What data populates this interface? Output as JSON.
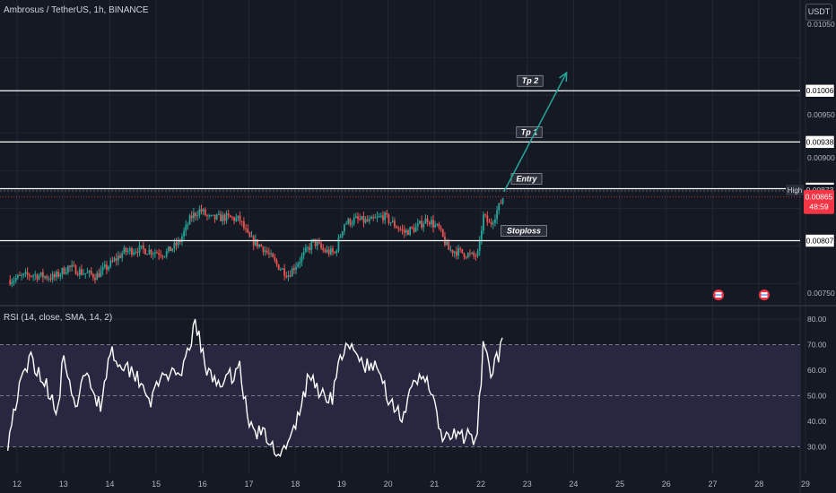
{
  "header": {
    "title": "Ambrosus / TetherUS, 1h, BINANCE",
    "currency": "USDT"
  },
  "colors": {
    "bg": "#151924",
    "grid": "#232733",
    "up": "#26a69a",
    "down": "#ef5350",
    "level_line": "#ffffff",
    "arrow": "#26a69a",
    "rsi_band": "#2a2944",
    "price_tag": "#f23645"
  },
  "chart_data": [
    {
      "type": "candlestick",
      "title": "Ambrosus / TetherUS, 1h, BINANCE",
      "x_ticks": [
        "12",
        "13",
        "14",
        "15",
        "16",
        "17",
        "18",
        "19",
        "20",
        "21",
        "22",
        "23",
        "24",
        "25",
        "26",
        "27",
        "28",
        "29"
      ],
      "y_ticks": [
        "0.01050",
        "0.00950",
        "0.00900",
        "0.00750"
      ],
      "ylim": [
        0.0074,
        0.0106
      ],
      "anchors": [
        {
          "day": 11.85,
          "price": 0.00755
        },
        {
          "day": 12.3,
          "price": 0.00762
        },
        {
          "day": 12.8,
          "price": 0.00758
        },
        {
          "day": 13.1,
          "price": 0.00772
        },
        {
          "day": 13.4,
          "price": 0.00765
        },
        {
          "day": 13.7,
          "price": 0.0076
        },
        {
          "day": 14.0,
          "price": 0.00775
        },
        {
          "day": 14.3,
          "price": 0.00792
        },
        {
          "day": 14.6,
          "price": 0.00796
        },
        {
          "day": 14.9,
          "price": 0.00793
        },
        {
          "day": 15.2,
          "price": 0.0079
        },
        {
          "day": 15.5,
          "price": 0.00805
        },
        {
          "day": 15.75,
          "price": 0.00838
        },
        {
          "day": 15.95,
          "price": 0.00848
        },
        {
          "day": 16.15,
          "price": 0.00836
        },
        {
          "day": 16.5,
          "price": 0.00838
        },
        {
          "day": 16.8,
          "price": 0.00835
        },
        {
          "day": 17.0,
          "price": 0.0081
        },
        {
          "day": 17.3,
          "price": 0.00798
        },
        {
          "day": 17.6,
          "price": 0.00775
        },
        {
          "day": 17.85,
          "price": 0.00762
        },
        {
          "day": 18.1,
          "price": 0.00782
        },
        {
          "day": 18.4,
          "price": 0.00806
        },
        {
          "day": 18.6,
          "price": 0.00794
        },
        {
          "day": 18.85,
          "price": 0.0079
        },
        {
          "day": 19.05,
          "price": 0.0083
        },
        {
          "day": 19.3,
          "price": 0.00835
        },
        {
          "day": 19.6,
          "price": 0.00832
        },
        {
          "day": 19.9,
          "price": 0.0084
        },
        {
          "day": 20.1,
          "price": 0.0083
        },
        {
          "day": 20.35,
          "price": 0.00818
        },
        {
          "day": 20.6,
          "price": 0.00824
        },
        {
          "day": 20.85,
          "price": 0.00836
        },
        {
          "day": 21.1,
          "price": 0.00822
        },
        {
          "day": 21.3,
          "price": 0.00795
        },
        {
          "day": 21.55,
          "price": 0.00792
        },
        {
          "day": 21.85,
          "price": 0.00786
        },
        {
          "day": 21.95,
          "price": 0.0079
        },
        {
          "day": 22.05,
          "price": 0.0084
        },
        {
          "day": 22.2,
          "price": 0.00828
        },
        {
          "day": 22.38,
          "price": 0.0085
        },
        {
          "day": 22.48,
          "price": 0.00865
        }
      ],
      "levels": [
        {
          "name": "Tp 2",
          "price": 0.01006,
          "label": "0.01006"
        },
        {
          "name": "Tp 1",
          "price": 0.00938,
          "label": "0.00938"
        },
        {
          "name": "Entry",
          "price": 0.00876,
          "label": "0.00876"
        },
        {
          "name": "Stoploss",
          "price": 0.00807,
          "label": "0.00807"
        }
      ],
      "high": {
        "label": "High",
        "value": "0.00873",
        "price": 0.00873
      },
      "current": {
        "value": "0.00865",
        "countdown": "48:59",
        "price": 0.00865
      },
      "arrow": {
        "from": {
          "day": 22.5,
          "price": 0.00872
        },
        "to": {
          "day": 23.85,
          "price": 0.0103
        }
      }
    },
    {
      "type": "line",
      "title": "RSI (14, close, SMA, 14, 2)",
      "y_ticks": [
        "80.00",
        "70.00",
        "60.00",
        "50.00",
        "40.00",
        "30.00"
      ],
      "ylim": [
        27,
        82
      ],
      "bands": [
        70,
        50,
        30
      ],
      "anchors": [
        {
          "day": 11.8,
          "value": 32
        },
        {
          "day": 12.0,
          "value": 50
        },
        {
          "day": 12.3,
          "value": 65
        },
        {
          "day": 12.6,
          "value": 55
        },
        {
          "day": 12.9,
          "value": 44
        },
        {
          "day": 13.0,
          "value": 68
        },
        {
          "day": 13.2,
          "value": 45
        },
        {
          "day": 13.5,
          "value": 58
        },
        {
          "day": 13.8,
          "value": 46
        },
        {
          "day": 14.0,
          "value": 68
        },
        {
          "day": 14.3,
          "value": 62
        },
        {
          "day": 14.6,
          "value": 58
        },
        {
          "day": 14.9,
          "value": 48
        },
        {
          "day": 15.2,
          "value": 60
        },
        {
          "day": 15.5,
          "value": 55
        },
        {
          "day": 15.75,
          "value": 72
        },
        {
          "day": 15.85,
          "value": 79
        },
        {
          "day": 16.1,
          "value": 58
        },
        {
          "day": 16.5,
          "value": 55
        },
        {
          "day": 16.8,
          "value": 62
        },
        {
          "day": 17.0,
          "value": 38
        },
        {
          "day": 17.3,
          "value": 35
        },
        {
          "day": 17.5,
          "value": 30
        },
        {
          "day": 17.8,
          "value": 28
        },
        {
          "day": 18.0,
          "value": 38
        },
        {
          "day": 18.3,
          "value": 58
        },
        {
          "day": 18.6,
          "value": 50
        },
        {
          "day": 18.8,
          "value": 50
        },
        {
          "day": 19.0,
          "value": 67
        },
        {
          "day": 19.2,
          "value": 68
        },
        {
          "day": 19.5,
          "value": 62
        },
        {
          "day": 19.8,
          "value": 60
        },
        {
          "day": 20.0,
          "value": 50
        },
        {
          "day": 20.3,
          "value": 42
        },
        {
          "day": 20.6,
          "value": 55
        },
        {
          "day": 20.85,
          "value": 58
        },
        {
          "day": 21.0,
          "value": 45
        },
        {
          "day": 21.2,
          "value": 32
        },
        {
          "day": 21.5,
          "value": 35
        },
        {
          "day": 21.8,
          "value": 33
        },
        {
          "day": 21.9,
          "value": 30
        },
        {
          "day": 22.05,
          "value": 68
        },
        {
          "day": 22.2,
          "value": 60
        },
        {
          "day": 22.38,
          "value": 66
        },
        {
          "day": 22.48,
          "value": 70
        }
      ]
    }
  ],
  "x_ticks": [
    "12",
    "13",
    "14",
    "15",
    "16",
    "17",
    "18",
    "19",
    "20",
    "21",
    "22",
    "23",
    "24",
    "25",
    "26",
    "27",
    "28",
    "29"
  ],
  "price_axis_ticks": [
    "0.01050",
    "0.00950",
    "0.00900",
    "0.00750"
  ],
  "rsi_axis_ticks": [
    "80.00",
    "70.00",
    "60.00",
    "50.00",
    "40.00",
    "30.00"
  ],
  "level_labels": [
    "Tp 2",
    "Tp 1",
    "Entry",
    "Stoploss"
  ],
  "level_values": [
    "0.01006",
    "0.00938",
    "0.00876",
    "0.00807"
  ]
}
